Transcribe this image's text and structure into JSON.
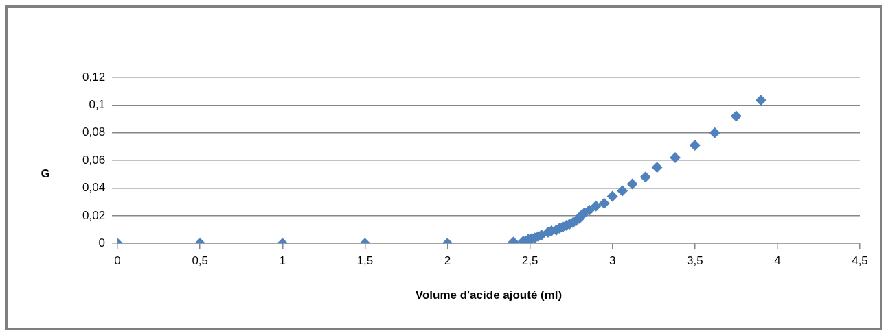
{
  "chart_data": {
    "type": "scatter",
    "xlabel": "Volume d'acide ajouté (ml)",
    "ylabel": "G",
    "marker": "diamond",
    "grid": "y",
    "legend": false,
    "xlim": [
      0,
      4.5
    ],
    "xticks": [
      0,
      {
        "value": 0.5,
        "label": "0,5"
      },
      1,
      {
        "value": 1.5,
        "label": "1,5"
      },
      2,
      {
        "value": 2.5,
        "label": "2,5"
      },
      3,
      {
        "value": 3.5,
        "label": "3,5"
      },
      4,
      {
        "value": 4.5,
        "label": "4,5"
      }
    ],
    "ylim": [
      0,
      0.12
    ],
    "yticks": [
      0,
      {
        "value": 0.02,
        "label": "0,02"
      },
      {
        "value": 0.04,
        "label": "0,04"
      },
      {
        "value": 0.06,
        "label": "0,06"
      },
      {
        "value": 0.08,
        "label": "0,08"
      },
      {
        "value": 0.1,
        "label": "0,1"
      },
      {
        "value": 0.12,
        "label": "0,12"
      }
    ],
    "series": [
      {
        "color": "#4f81bd",
        "x": [
          0,
          0.5,
          1,
          1.5,
          2,
          2.4,
          2.46,
          2.49,
          2.51,
          2.53,
          2.55,
          2.57,
          2.59,
          2.61,
          2.63,
          2.66,
          2.68,
          2.7,
          2.72,
          2.74,
          2.76,
          2.78,
          2.8,
          2.81,
          2.83,
          2.86,
          2.9,
          2.95,
          3,
          3.06,
          3.12,
          3.2,
          3.27,
          3.38,
          3.5,
          3.62,
          3.75,
          3.9
        ],
        "values": [
          0,
          0,
          0,
          0,
          0,
          0.001,
          0.0016,
          0.003,
          0.0035,
          0.004,
          0.005,
          0.006,
          null,
          0.008,
          0.009,
          0.0096,
          0.011,
          0.012,
          0.013,
          0.014,
          0.015,
          0.0165,
          0.018,
          0.02,
          0.022,
          0.024,
          0.027,
          0.029,
          0.034,
          0.038,
          0.043,
          0.048,
          0.055,
          0.062,
          0.071,
          0.08,
          0.092,
          0.1035
        ]
      }
    ]
  }
}
